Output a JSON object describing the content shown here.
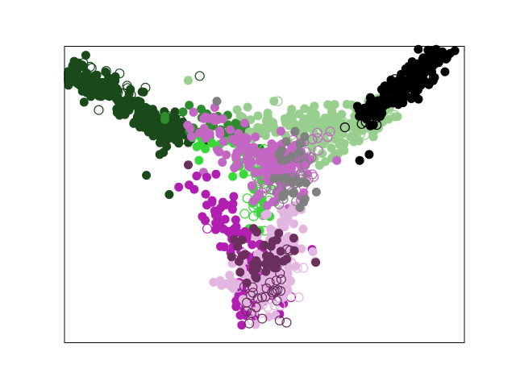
{
  "chart_data": {
    "type": "scatter",
    "title": "",
    "xlabel": "",
    "ylabel": "",
    "xlim": [
      -1.05,
      1.05
    ],
    "ylim": [
      -1.05,
      0.95
    ],
    "ticks_visible": false,
    "grid": false,
    "legend": "none",
    "series": [
      {
        "color": "#1a4a1a",
        "marker": "filled-circle",
        "anchors": [
          [
            -1.0,
            0.78
          ],
          [
            -0.85,
            0.65
          ],
          [
            -0.62,
            0.48
          ],
          [
            -0.45,
            0.36
          ]
        ],
        "count": 230,
        "spread": 0.045,
        "extras": [
          [
            -0.62,
            0.08
          ],
          [
            -0.55,
            0.22
          ],
          [
            -0.5,
            -0.05
          ],
          [
            -0.4,
            0.3
          ],
          [
            -0.48,
            0.38
          ]
        ]
      },
      {
        "color": "#1a4a1a",
        "marker": "hollow-circle",
        "anchors": [
          [
            -0.98,
            0.8
          ],
          [
            -0.7,
            0.6
          ],
          [
            -0.45,
            0.4
          ]
        ],
        "count": 25,
        "spread": 0.05,
        "extras": [
          [
            -0.87,
            0.52
          ],
          [
            -0.34,
            0.75
          ]
        ]
      },
      {
        "color": "#2e8b2e",
        "marker": "filled-circle",
        "anchors": [
          [
            -0.42,
            0.48
          ],
          [
            -0.25,
            0.42
          ],
          [
            -0.12,
            0.35
          ]
        ],
        "count": 40,
        "spread": 0.06,
        "extras": []
      },
      {
        "color": "#39d839",
        "marker": "filled-circle",
        "anchors": [
          [
            -0.3,
            0.3
          ],
          [
            -0.1,
            0.15
          ],
          [
            -0.02,
            -0.1
          ],
          [
            -0.08,
            -0.28
          ]
        ],
        "count": 35,
        "spread": 0.05,
        "extras": []
      },
      {
        "color": "#39d839",
        "marker": "hollow-circle",
        "anchors": [
          [
            -0.1,
            0.25
          ],
          [
            0.0,
            0.05
          ],
          [
            -0.05,
            -0.2
          ]
        ],
        "count": 35,
        "spread": 0.05,
        "extras": []
      },
      {
        "color": "#98cf8e",
        "marker": "filled-circle",
        "anchors": [
          [
            -0.05,
            0.42
          ],
          [
            0.22,
            0.4
          ],
          [
            0.42,
            0.45
          ],
          [
            0.6,
            0.48
          ],
          [
            0.3,
            0.25
          ]
        ],
        "count": 170,
        "spread": 0.07,
        "extras": [
          [
            -0.4,
            0.72
          ],
          [
            0.05,
            0.58
          ]
        ]
      },
      {
        "color": "#98cf8e",
        "marker": "hollow-circle",
        "anchors": [
          [
            0.35,
            0.35
          ],
          [
            0.55,
            0.45
          ],
          [
            0.15,
            0.3
          ]
        ],
        "count": 30,
        "spread": 0.06,
        "extras": [
          [
            0.07,
            0.58
          ],
          [
            0.47,
            0.37
          ]
        ]
      },
      {
        "color": "#000000",
        "marker": "filled-circle",
        "anchors": [
          [
            0.9,
            0.88
          ],
          [
            0.8,
            0.76
          ],
          [
            0.7,
            0.64
          ],
          [
            0.55,
            0.5
          ]
        ],
        "count": 200,
        "spread": 0.04,
        "extras": [
          [
            1.0,
            0.92
          ],
          [
            0.5,
            0.18
          ],
          [
            0.55,
            0.22
          ]
        ]
      },
      {
        "color": "#000000",
        "marker": "hollow-circle",
        "anchors": [
          [
            0.85,
            0.8
          ],
          [
            0.65,
            0.6
          ],
          [
            0.5,
            0.38
          ]
        ],
        "count": 25,
        "spread": 0.05,
        "extras": []
      },
      {
        "color": "#c466c4",
        "marker": "filled-circle",
        "anchors": [
          [
            -0.3,
            0.42
          ],
          [
            -0.1,
            0.25
          ],
          [
            0.05,
            0.12
          ],
          [
            0.15,
            0.2
          ],
          [
            0.05,
            -0.05
          ]
        ],
        "count": 160,
        "spread": 0.07,
        "extras": [
          [
            -0.32,
            0.1
          ],
          [
            0.38,
            0.18
          ]
        ]
      },
      {
        "color": "#c466c4",
        "marker": "hollow-circle",
        "anchors": [
          [
            0.1,
            0.25
          ],
          [
            0.2,
            0.15
          ],
          [
            0.0,
            0.05
          ],
          [
            0.28,
            0.3
          ]
        ],
        "count": 50,
        "spread": 0.07,
        "extras": []
      },
      {
        "color": "#b21eb2",
        "marker": "filled-circle",
        "anchors": [
          [
            -0.3,
            0.0
          ],
          [
            -0.2,
            -0.25
          ],
          [
            -0.05,
            -0.45
          ],
          [
            -0.1,
            -0.8
          ],
          [
            0.05,
            -0.65
          ]
        ],
        "count": 130,
        "spread": 0.06,
        "extras": [
          [
            0.25,
            -0.42
          ],
          [
            -0.45,
            0.0
          ]
        ]
      },
      {
        "color": "#b21eb2",
        "marker": "hollow-circle",
        "anchors": [
          [
            -0.05,
            -0.55
          ],
          [
            0.05,
            -0.7
          ]
        ],
        "count": 15,
        "spread": 0.06,
        "extras": [
          [
            -0.3,
            -0.28
          ]
        ]
      },
      {
        "color": "#e2b6e0",
        "marker": "filled-circle",
        "anchors": [
          [
            0.1,
            -0.4
          ],
          [
            0.05,
            -0.6
          ],
          [
            0.0,
            -0.8
          ],
          [
            0.15,
            -0.2
          ],
          [
            -0.15,
            -0.65
          ]
        ],
        "count": 140,
        "spread": 0.055,
        "extras": []
      },
      {
        "color": "#e2b6e0",
        "marker": "hollow-circle",
        "anchors": [
          [
            0.0,
            -0.7
          ],
          [
            0.1,
            -0.55
          ],
          [
            -0.05,
            -0.85
          ]
        ],
        "count": 40,
        "spread": 0.05,
        "extras": []
      },
      {
        "color": "#6b2f5e",
        "marker": "filled-circle",
        "anchors": [
          [
            -0.1,
            -0.4
          ],
          [
            0.0,
            -0.55
          ],
          [
            0.1,
            -0.35
          ]
        ],
        "count": 40,
        "spread": 0.07,
        "extras": [
          [
            -0.4,
            0.15
          ],
          [
            0.1,
            -0.5
          ]
        ]
      },
      {
        "color": "#6b2f5e",
        "marker": "hollow-circle",
        "anchors": [
          [
            0.05,
            -0.6
          ],
          [
            -0.05,
            -0.85
          ],
          [
            0.1,
            -0.45
          ]
        ],
        "count": 30,
        "spread": 0.06,
        "extras": [
          [
            0.08,
            -0.9
          ],
          [
            -0.08,
            -0.92
          ]
        ]
      },
      {
        "color": "#808080",
        "marker": "filled-circle",
        "anchors": [
          [
            0.15,
            0.05
          ],
          [
            0.18,
            -0.1
          ],
          [
            0.1,
            0.35
          ]
        ],
        "count": 25,
        "spread": 0.05,
        "extras": [
          [
            -0.25,
            0.58
          ]
        ]
      },
      {
        "color": "#808080",
        "marker": "hollow-circle",
        "anchors": [
          [
            0.2,
            0.05
          ],
          [
            0.12,
            -0.05
          ],
          [
            0.25,
            0.25
          ]
        ],
        "count": 25,
        "spread": 0.05,
        "extras": []
      }
    ]
  }
}
